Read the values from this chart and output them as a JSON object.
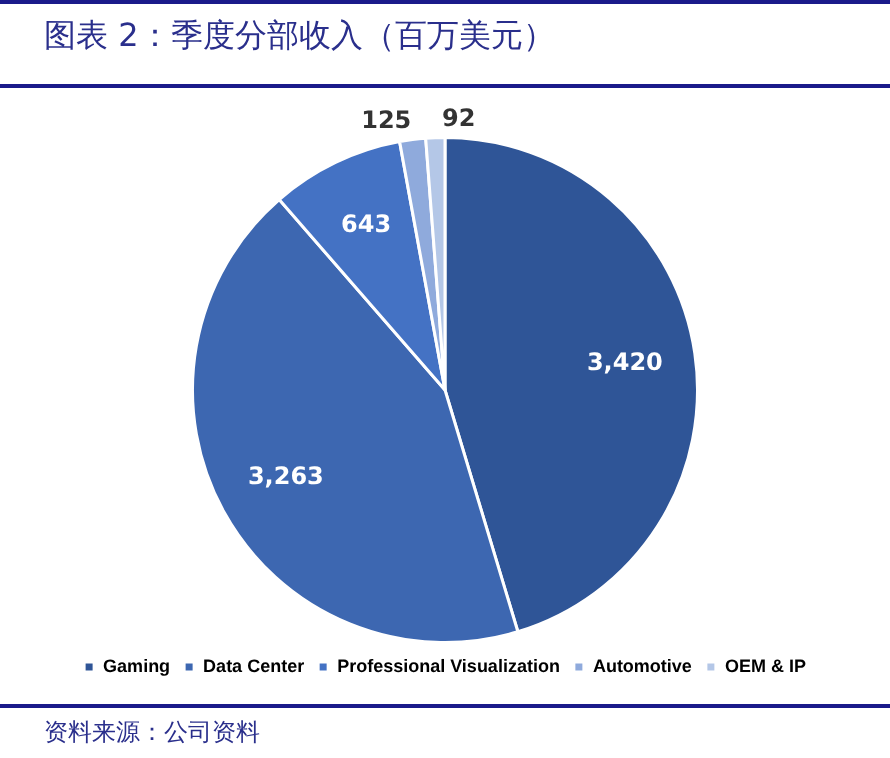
{
  "chart_data": {
    "type": "pie",
    "title": "图表 2：季度分部收入（百万美元）",
    "categories": [
      "Gaming",
      "Data Center",
      "Professional Visualization",
      "Automotive",
      "OEM & IP"
    ],
    "values": [
      3420,
      3263,
      643,
      125,
      92
    ],
    "colors": [
      "#2f5597",
      "#3d67b1",
      "#4472c4",
      "#8faadc",
      "#b4c7e7"
    ],
    "value_labels": [
      "3,420",
      "3,263",
      "643",
      "125",
      "92"
    ],
    "legend": "bottom",
    "annotations": [
      "资料来源：公司资料"
    ]
  }
}
